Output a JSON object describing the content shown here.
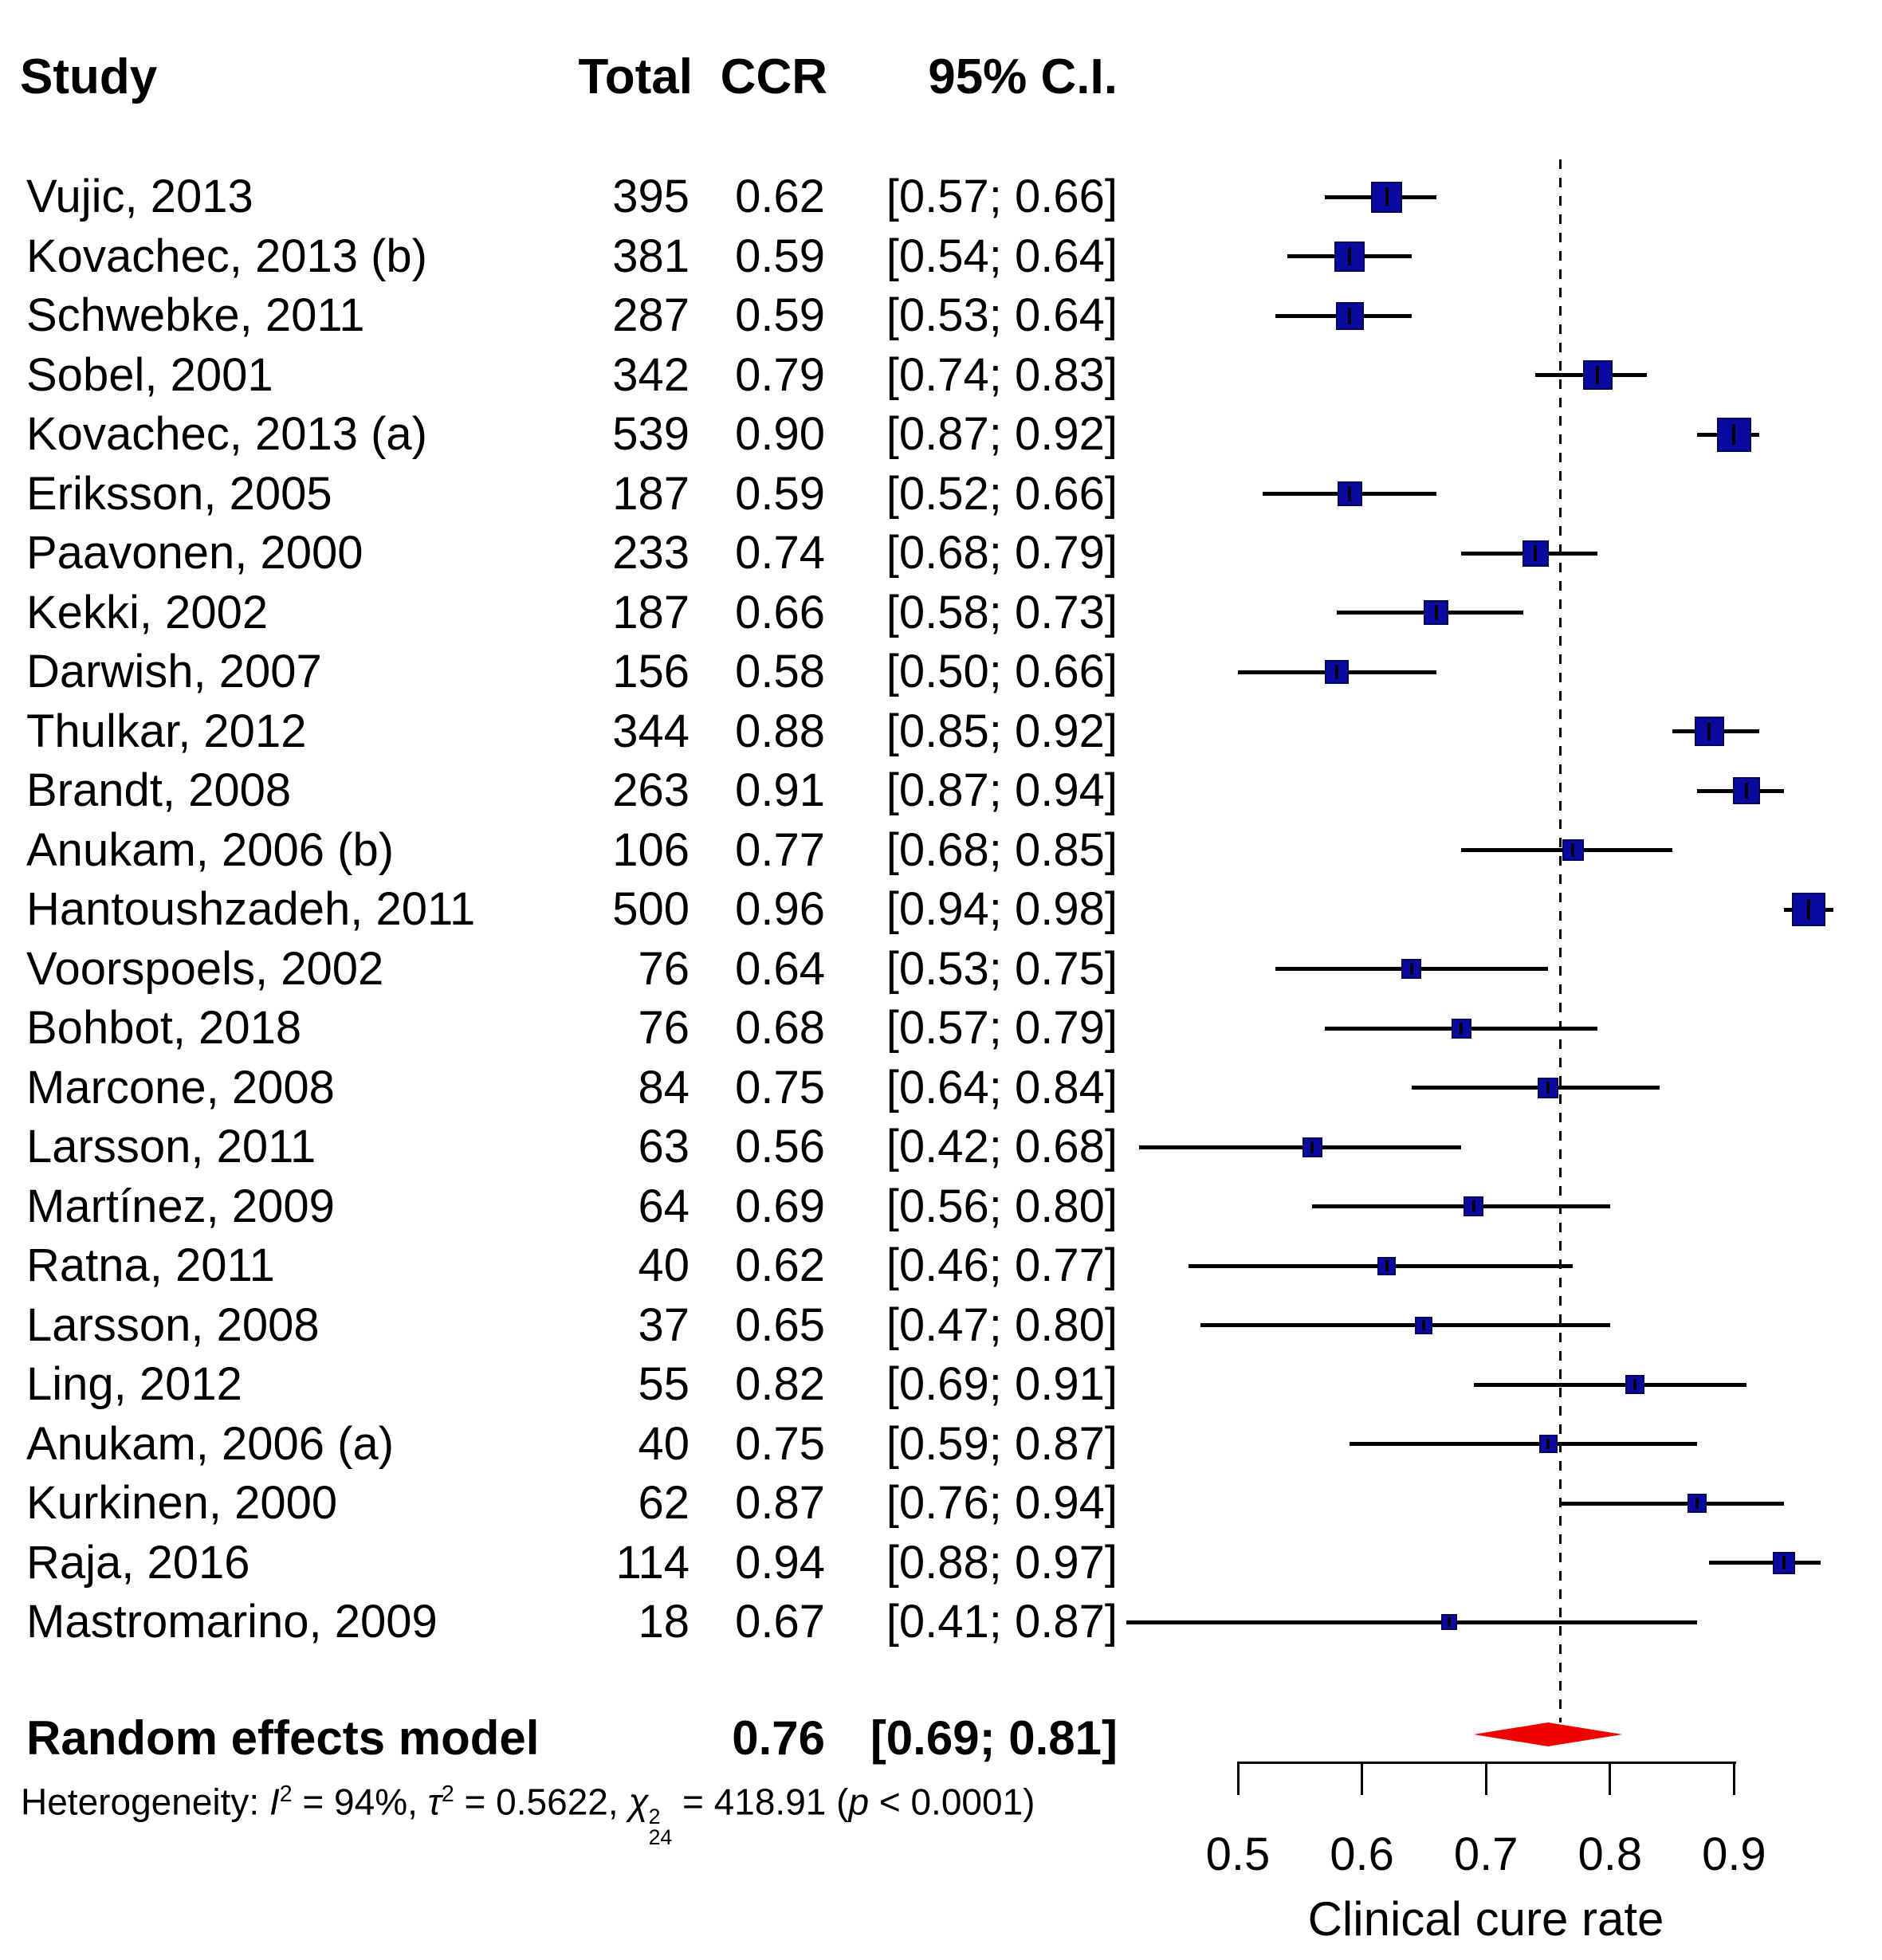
{
  "colors": {
    "square_fill": "#0A0AA0",
    "square_border": "#06065A",
    "marker": "#000000",
    "diamond": "#F10000",
    "line": "#000000",
    "text": "#000000"
  },
  "chart_data": {
    "type": "forest",
    "columns": [
      "Study",
      "Total",
      "CCR",
      "95% C.I."
    ],
    "studies": [
      {
        "study": "Vujic, 2013",
        "total": 395,
        "total_text": "395",
        "ccr": 0.62,
        "ccr_text": "0.62",
        "ci_lower": 0.57,
        "ci_upper": 0.66,
        "ci_text": "[0.57; 0.66]"
      },
      {
        "study": "Kovachec, 2013 (b)",
        "total": 381,
        "total_text": "381",
        "ccr": 0.59,
        "ccr_text": "0.59",
        "ci_lower": 0.54,
        "ci_upper": 0.64,
        "ci_text": "[0.54; 0.64]"
      },
      {
        "study": "Schwebke, 2011",
        "total": 287,
        "total_text": "287",
        "ccr": 0.59,
        "ccr_text": "0.59",
        "ci_lower": 0.53,
        "ci_upper": 0.64,
        "ci_text": "[0.53; 0.64]"
      },
      {
        "study": "Sobel, 2001",
        "total": 342,
        "total_text": "342",
        "ccr": 0.79,
        "ccr_text": "0.79",
        "ci_lower": 0.74,
        "ci_upper": 0.83,
        "ci_text": "[0.74; 0.83]"
      },
      {
        "study": "Kovachec, 2013 (a)",
        "total": 539,
        "total_text": "539",
        "ccr": 0.9,
        "ccr_text": "0.90",
        "ci_lower": 0.87,
        "ci_upper": 0.92,
        "ci_text": "[0.87; 0.92]"
      },
      {
        "study": "Eriksson, 2005",
        "total": 187,
        "total_text": "187",
        "ccr": 0.59,
        "ccr_text": "0.59",
        "ci_lower": 0.52,
        "ci_upper": 0.66,
        "ci_text": "[0.52; 0.66]"
      },
      {
        "study": "Paavonen, 2000",
        "total": 233,
        "total_text": "233",
        "ccr": 0.74,
        "ccr_text": "0.74",
        "ci_lower": 0.68,
        "ci_upper": 0.79,
        "ci_text": "[0.68; 0.79]"
      },
      {
        "study": "Kekki, 2002",
        "total": 187,
        "total_text": "187",
        "ccr": 0.66,
        "ccr_text": "0.66",
        "ci_lower": 0.58,
        "ci_upper": 0.73,
        "ci_text": "[0.58; 0.73]"
      },
      {
        "study": "Darwish, 2007",
        "total": 156,
        "total_text": "156",
        "ccr": 0.58,
        "ccr_text": "0.58",
        "ci_lower": 0.5,
        "ci_upper": 0.66,
        "ci_text": "[0.50; 0.66]"
      },
      {
        "study": "Thulkar, 2012",
        "total": 344,
        "total_text": "344",
        "ccr": 0.88,
        "ccr_text": "0.88",
        "ci_lower": 0.85,
        "ci_upper": 0.92,
        "ci_text": "[0.85; 0.92]"
      },
      {
        "study": "Brandt, 2008",
        "total": 263,
        "total_text": "263",
        "ccr": 0.91,
        "ccr_text": "0.91",
        "ci_lower": 0.87,
        "ci_upper": 0.94,
        "ci_text": "[0.87; 0.94]"
      },
      {
        "study": "Anukam, 2006 (b)",
        "total": 106,
        "total_text": "106",
        "ccr": 0.77,
        "ccr_text": "0.77",
        "ci_lower": 0.68,
        "ci_upper": 0.85,
        "ci_text": "[0.68; 0.85]"
      },
      {
        "study": "Hantoushzadeh, 2011",
        "total": 500,
        "total_text": "500",
        "ccr": 0.96,
        "ccr_text": "0.96",
        "ci_lower": 0.94,
        "ci_upper": 0.98,
        "ci_text": "[0.94; 0.98]"
      },
      {
        "study": "Voorspoels, 2002",
        "total": 76,
        "total_text": "76",
        "ccr": 0.64,
        "ccr_text": "0.64",
        "ci_lower": 0.53,
        "ci_upper": 0.75,
        "ci_text": "[0.53; 0.75]"
      },
      {
        "study": "Bohbot, 2018",
        "total": 76,
        "total_text": "76",
        "ccr": 0.68,
        "ccr_text": "0.68",
        "ci_lower": 0.57,
        "ci_upper": 0.79,
        "ci_text": "[0.57; 0.79]"
      },
      {
        "study": "Marcone, 2008",
        "total": 84,
        "total_text": "84",
        "ccr": 0.75,
        "ccr_text": "0.75",
        "ci_lower": 0.64,
        "ci_upper": 0.84,
        "ci_text": "[0.64; 0.84]"
      },
      {
        "study": "Larsson, 2011",
        "total": 63,
        "total_text": "63",
        "ccr": 0.56,
        "ccr_text": "0.56",
        "ci_lower": 0.42,
        "ci_upper": 0.68,
        "ci_text": "[0.42; 0.68]"
      },
      {
        "study": "Martínez, 2009",
        "total": 64,
        "total_text": "64",
        "ccr": 0.69,
        "ccr_text": "0.69",
        "ci_lower": 0.56,
        "ci_upper": 0.8,
        "ci_text": "[0.56; 0.80]"
      },
      {
        "study": "Ratna, 2011",
        "total": 40,
        "total_text": "40",
        "ccr": 0.62,
        "ccr_text": "0.62",
        "ci_lower": 0.46,
        "ci_upper": 0.77,
        "ci_text": "[0.46; 0.77]"
      },
      {
        "study": "Larsson, 2008",
        "total": 37,
        "total_text": "37",
        "ccr": 0.65,
        "ccr_text": "0.65",
        "ci_lower": 0.47,
        "ci_upper": 0.8,
        "ci_text": "[0.47; 0.80]"
      },
      {
        "study": "Ling, 2012",
        "total": 55,
        "total_text": "55",
        "ccr": 0.82,
        "ccr_text": "0.82",
        "ci_lower": 0.69,
        "ci_upper": 0.91,
        "ci_text": "[0.69; 0.91]"
      },
      {
        "study": "Anukam, 2006 (a)",
        "total": 40,
        "total_text": "40",
        "ccr": 0.75,
        "ccr_text": "0.75",
        "ci_lower": 0.59,
        "ci_upper": 0.87,
        "ci_text": "[0.59; 0.87]"
      },
      {
        "study": "Kurkinen, 2000",
        "total": 62,
        "total_text": "62",
        "ccr": 0.87,
        "ccr_text": "0.87",
        "ci_lower": 0.76,
        "ci_upper": 0.94,
        "ci_text": "[0.76; 0.94]"
      },
      {
        "study": "Raja, 2016",
        "total": 114,
        "total_text": "114",
        "ccr": 0.94,
        "ccr_text": "0.94",
        "ci_lower": 0.88,
        "ci_upper": 0.97,
        "ci_text": "[0.88; 0.97]"
      },
      {
        "study": "Mastromarino, 2009",
        "total": 18,
        "total_text": "18",
        "ccr": 0.67,
        "ccr_text": "0.67",
        "ci_lower": 0.41,
        "ci_upper": 0.87,
        "ci_text": "[0.41; 0.87]"
      }
    ],
    "pooled": {
      "label": "Random effects model",
      "ccr": 0.76,
      "ccr_text": "0.76",
      "ci_lower": 0.69,
      "ci_upper": 0.81,
      "ci_text": "[0.69; 0.81]"
    },
    "reference_line": 0.76,
    "heterogeneity_parts": [
      {
        "t": "Heterogeneity: "
      },
      {
        "t": "I",
        "i": true
      },
      {
        "t": "2",
        "sup": true
      },
      {
        "t": " = 94%, "
      },
      {
        "t": "τ",
        "i": true
      },
      {
        "t": "2",
        "sup": true
      },
      {
        "t": " = 0.5622, "
      },
      {
        "t": "χ",
        "i": true
      },
      {
        "stack": {
          "sup": "2",
          "sub": "24"
        }
      },
      {
        "t": " = 418.91 ("
      },
      {
        "t": "p",
        "i": true
      },
      {
        "t": " < 0.0001)"
      }
    ],
    "x_axis": {
      "label": "Clinical cure rate",
      "ticks": [
        0.5,
        0.6,
        0.7,
        0.8,
        0.9
      ],
      "tick_labels": [
        "0.5",
        "0.6",
        "0.7",
        "0.8",
        "0.9"
      ],
      "range_min": 0.5,
      "range_max": 0.9,
      "grid": false
    }
  }
}
